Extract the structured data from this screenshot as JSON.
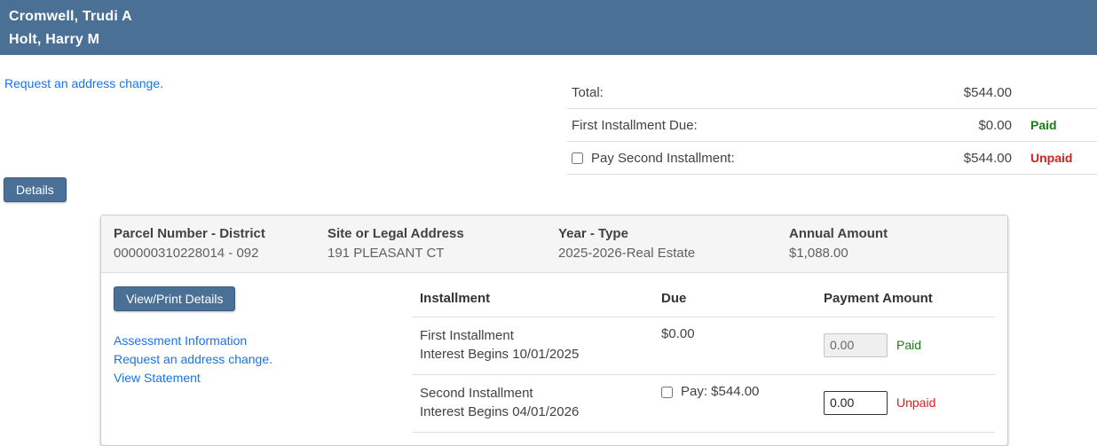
{
  "colors": {
    "header_bg": "#4b7095",
    "button_bg": "#4a7095",
    "link_blue": "#1a73e8",
    "paid_green": "#157f15",
    "unpaid_red": "#d62020"
  },
  "header": {
    "names": [
      "Cromwell, Trudi A",
      "Holt, Harry M"
    ]
  },
  "top": {
    "address_change_link": "Request an address change."
  },
  "summary": {
    "rows": [
      {
        "label": "Total:",
        "amount": "$544.00",
        "status": ""
      },
      {
        "label": "First Installment Due:",
        "amount": "$0.00",
        "status": "Paid"
      },
      {
        "label": "Pay Second Installment:",
        "amount": "$544.00",
        "status": "Unpaid"
      }
    ]
  },
  "details_button_label": "Details",
  "panel": {
    "header_columns": [
      {
        "label": "Parcel Number - District",
        "value": "000000310228014 - 092"
      },
      {
        "label": "Site or Legal Address",
        "value": "191 PLEASANT CT"
      },
      {
        "label": "Year - Type",
        "value": "2025-2026-Real Estate"
      },
      {
        "label": "Annual Amount",
        "value": "$1,088.00"
      }
    ],
    "view_print_button_label": "View/Print Details",
    "links": [
      "Assessment Information",
      "Request an address change.",
      "View Statement"
    ],
    "table": {
      "headers": [
        "Installment",
        "Due",
        "Payment Amount"
      ],
      "rows": [
        {
          "name": "First Installment",
          "interest": "Interest Begins 10/01/2025",
          "due": "$0.00",
          "pay_label": "",
          "input_value": "0.00",
          "status": "Paid"
        },
        {
          "name": "Second Installment",
          "interest": "Interest Begins 04/01/2026",
          "due": "",
          "pay_label": "Pay: $544.00",
          "input_value": "0.00",
          "status": "Unpaid"
        }
      ]
    }
  }
}
